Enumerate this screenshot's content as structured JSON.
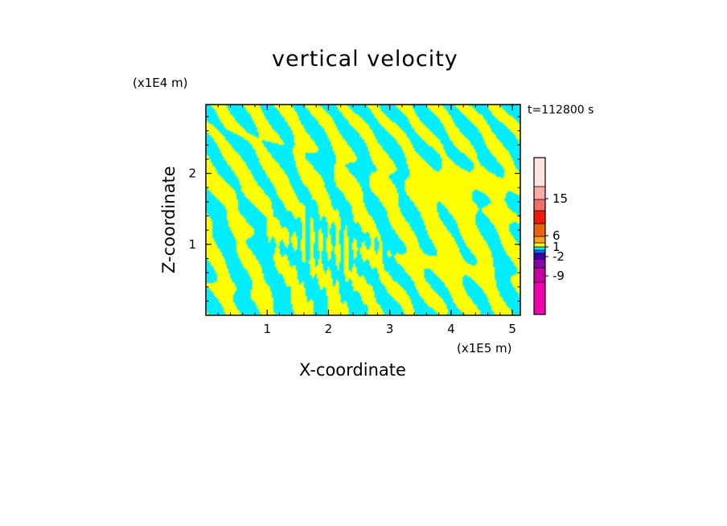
{
  "chart_data": {
    "type": "heatmap",
    "title": "vertical velocity",
    "xlabel": "X-coordinate",
    "ylabel": "Z-coordinate",
    "x_unit": "(x1E5 m)",
    "y_unit": "(x1E4 m)",
    "time_label": "t=112800 s",
    "xlim": [
      0,
      5.13
    ],
    "ylim": [
      0,
      2.97
    ],
    "x_ticks": [
      "1",
      "2",
      "3",
      "4",
      "5"
    ],
    "y_ticks": [
      "1",
      "2"
    ],
    "colorbar": {
      "tick_labels": [
        "15",
        "6",
        "1",
        "-2",
        "-9"
      ],
      "colors": [
        "#ffe4e4",
        "#f6aaaa",
        "#f36d6d",
        "#ee1b0b",
        "#e86310",
        "#ffa020",
        "#ffff00",
        "#00eeff",
        "#0066ff",
        "#3f00ad",
        "#8a00a8",
        "#c4009e",
        "#ee00ae"
      ]
    },
    "field": {
      "positive_color": "#ffff00",
      "negative_color": "#00eeff",
      "dominant_levels": [
        "1",
        "-2"
      ]
    }
  }
}
